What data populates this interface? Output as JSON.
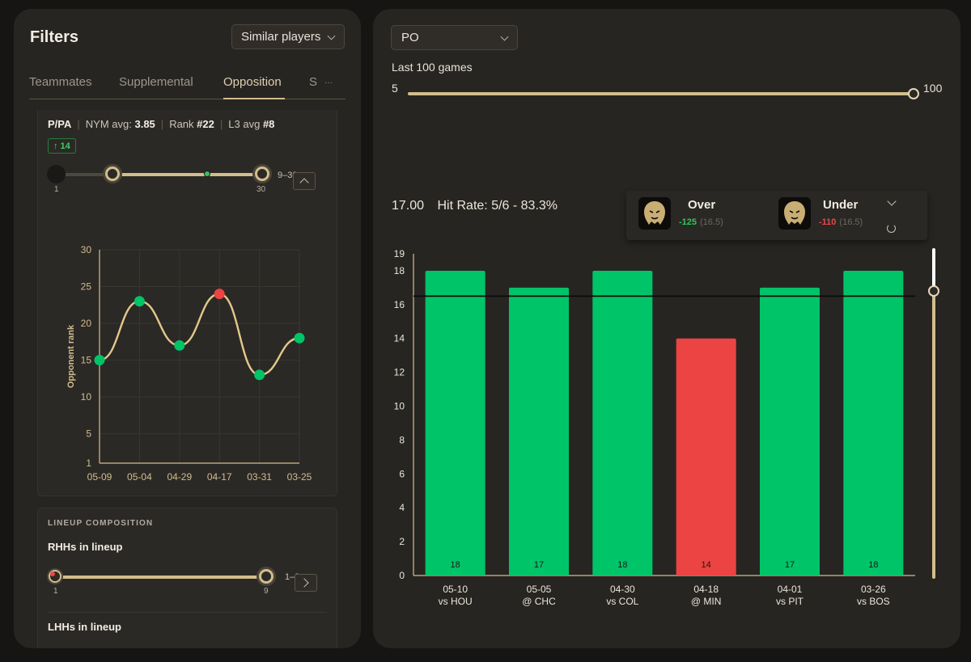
{
  "filters": {
    "title": "Filters",
    "similar_label": "Similar players",
    "tabs": [
      "Teammates",
      "Supplemental",
      "Opposition",
      "S"
    ],
    "tab_more": "···",
    "active_tab": "Opposition"
  },
  "ppa": {
    "label": "P/PA",
    "avg_label": "NYM avg:",
    "avg_value": "3.85",
    "rank_label": "Rank",
    "rank_value": "#22",
    "l3_label": "L3 avg",
    "l3_value": "#8",
    "badge_value": "14",
    "range_min_label": "1",
    "range_max_label": "30",
    "range_text": "9–30",
    "range_low": 9,
    "range_high": 30,
    "marker_value": 22
  },
  "lineup": {
    "title": "LINEUP COMPOSITION",
    "rhh_label": "RHHs in lineup",
    "rhh_min_label": "1",
    "rhh_max_label": "9",
    "rhh_range_text": "1–9",
    "lhh_label": "LHHs in lineup"
  },
  "main": {
    "prop_select": "PO",
    "games_label": "Last 100 games",
    "games_min": "5",
    "games_max": "100",
    "line_value": "17.00",
    "hit_rate": "Hit Rate: 5/6 - 83.3%",
    "over": {
      "label": "Over",
      "price": "-125",
      "line": "(16.5)"
    },
    "under": {
      "label": "Under",
      "price": "-110",
      "line": "(16.5)"
    }
  },
  "colors": {
    "hit": "#00c468",
    "miss": "#ec4343",
    "accent": "#d2bd8c",
    "bg": "#272522"
  },
  "chart_data": [
    {
      "type": "line",
      "ylabel": "Opponent rank",
      "x": [
        "05-09",
        "05-04",
        "04-29",
        "04-17",
        "03-31",
        "03-25"
      ],
      "values": [
        15,
        23,
        17,
        24,
        13,
        18
      ],
      "point_status": [
        "hit",
        "hit",
        "hit",
        "miss",
        "hit",
        "hit"
      ],
      "y_ticks": [
        1,
        5,
        10,
        15,
        20,
        25,
        30
      ],
      "ylim": [
        1,
        30
      ],
      "grid": true
    },
    {
      "type": "bar",
      "categories": [
        "05-10",
        "05-05",
        "04-30",
        "04-18",
        "04-01",
        "03-26"
      ],
      "opponents": [
        "vs HOU",
        "@ CHC",
        "vs COL",
        "@ MIN",
        "vs PIT",
        "vs BOS"
      ],
      "values": [
        18,
        17,
        18,
        14,
        17,
        18
      ],
      "status": [
        "hit",
        "hit",
        "hit",
        "miss",
        "hit",
        "hit"
      ],
      "line": 16.5,
      "y_ticks": [
        0,
        2,
        4,
        6,
        8,
        10,
        12,
        14,
        16,
        18,
        19
      ],
      "ylim": [
        0,
        19
      ],
      "grid": false
    }
  ]
}
